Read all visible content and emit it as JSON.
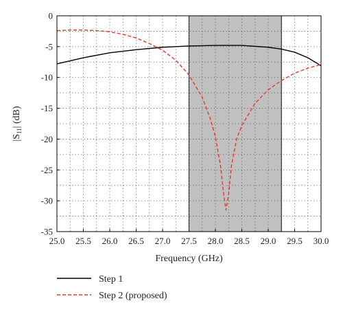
{
  "chart_data": {
    "type": "line",
    "xlabel": "Frequency (GHz)",
    "ylabel_main": "|S",
    "ylabel_sub": "11",
    "ylabel_tail": "| (dB)",
    "xlim": [
      25.0,
      30.0
    ],
    "ylim": [
      -35,
      0
    ],
    "x_ticks": [
      "25.0",
      "25.5",
      "26.0",
      "26.5",
      "27.0",
      "27.5",
      "28.0",
      "28.5",
      "29.0",
      "29.5",
      "30.0"
    ],
    "y_ticks": [
      "0",
      "-5",
      "-10",
      "-15",
      "-20",
      "-25",
      "-30",
      "-35"
    ],
    "grid": "dotted",
    "shaded_band": [
      27.5,
      29.25
    ],
    "legend_placement": "below",
    "series": [
      {
        "name": "Step 1",
        "color": "#000000",
        "style": "solid",
        "x": [
          25.0,
          25.5,
          26.0,
          26.5,
          27.0,
          27.5,
          28.0,
          28.5,
          29.0,
          29.25,
          29.5,
          29.75,
          30.0
        ],
        "y": [
          -7.8,
          -6.8,
          -6.0,
          -5.5,
          -5.1,
          -4.9,
          -4.8,
          -4.8,
          -5.1,
          -5.4,
          -5.9,
          -6.8,
          -8.1
        ]
      },
      {
        "name": "Step 2 (proposed)",
        "color": "#e8372a",
        "style": "dashed",
        "x": [
          25.0,
          25.25,
          25.5,
          25.75,
          26.0,
          26.25,
          26.5,
          26.75,
          27.0,
          27.25,
          27.5,
          27.75,
          27.9,
          28.0,
          28.1,
          28.15,
          28.2,
          28.25,
          28.3,
          28.4,
          28.5,
          28.75,
          29.0,
          29.25,
          29.5,
          29.75,
          30.0
        ],
        "y": [
          -2.4,
          -2.3,
          -2.3,
          -2.4,
          -2.6,
          -3.0,
          -3.6,
          -4.5,
          -5.6,
          -7.2,
          -9.6,
          -13.2,
          -16.6,
          -19.6,
          -24.5,
          -28.5,
          -31.5,
          -29.0,
          -24.5,
          -20.0,
          -17.8,
          -14.2,
          -12.0,
          -10.5,
          -9.3,
          -8.5,
          -7.9
        ]
      }
    ]
  }
}
